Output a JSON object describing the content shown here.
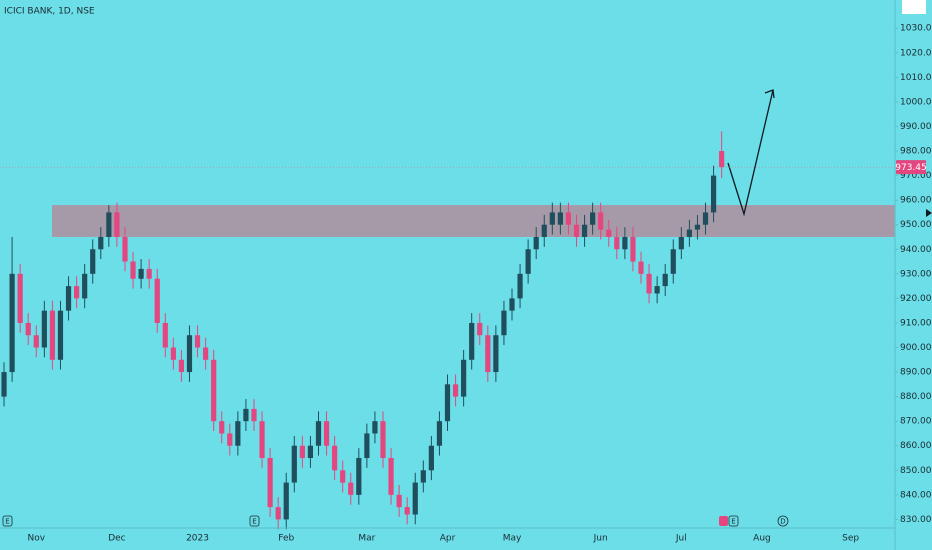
{
  "chart_data": {
    "type": "candlestick",
    "title": "ICICI BANK, 1D, NSE",
    "categories": [
      null,
      null,
      null,
      null,
      "Nov",
      null,
      null,
      null,
      null,
      null,
      null,
      null,
      null,
      null,
      "Dec",
      null,
      null,
      null,
      null,
      null,
      null,
      null,
      null,
      null,
      "2023",
      null,
      null,
      null,
      null,
      null,
      null,
      null,
      null,
      null,
      null,
      "Feb",
      null,
      null,
      null,
      null,
      null,
      null,
      null,
      null,
      null,
      "Mar",
      null,
      null,
      null,
      null,
      null,
      null,
      null,
      null,
      null,
      "Apr",
      null,
      null,
      null,
      null,
      null,
      null,
      null,
      "May",
      null,
      null,
      null,
      null,
      null,
      null,
      null,
      null,
      null,
      null,
      "Jun",
      null,
      null,
      null,
      null,
      null,
      null,
      null,
      null,
      null,
      "Jul",
      null,
      null,
      null,
      null,
      null,
      null,
      null,
      null,
      null,
      "Aug",
      null,
      null,
      null,
      null,
      null,
      null,
      null,
      null,
      null,
      null,
      "Sep",
      null,
      null,
      null,
      null,
      null
    ],
    "open": [
      880,
      890,
      930,
      910,
      905,
      900,
      915,
      895,
      915,
      925,
      920,
      930,
      940,
      945,
      955,
      945,
      935,
      928,
      932,
      928,
      910,
      900,
      895,
      890,
      905,
      900,
      895,
      870,
      865,
      860,
      870,
      875,
      870,
      855,
      835,
      830,
      845,
      860,
      855,
      860,
      870,
      860,
      850,
      845,
      840,
      855,
      865,
      870,
      855,
      840,
      835,
      832,
      845,
      850,
      860,
      870,
      885,
      880,
      895,
      910,
      905,
      890,
      905,
      915,
      920,
      930,
      940,
      945,
      950,
      950,
      955,
      950,
      945,
      950,
      955,
      948,
      945,
      940,
      945,
      935,
      930,
      922,
      925,
      930,
      940,
      945,
      948,
      950,
      955,
      980,
      null,
      null,
      null,
      null,
      null,
      null,
      null,
      null,
      null,
      null,
      null,
      null,
      null,
      null,
      null,
      null,
      null,
      null,
      null,
      null,
      null
    ],
    "high": [
      894,
      945,
      934,
      914,
      909,
      919,
      919,
      919,
      929,
      929,
      934,
      944,
      949,
      958,
      959,
      949,
      939,
      936,
      936,
      932,
      914,
      904,
      899,
      909,
      909,
      904,
      899,
      874,
      869,
      874,
      879,
      879,
      874,
      859,
      839,
      849,
      864,
      864,
      864,
      874,
      874,
      864,
      854,
      849,
      859,
      869,
      874,
      874,
      859,
      844,
      839,
      849,
      854,
      864,
      874,
      889,
      889,
      899,
      914,
      914,
      909,
      909,
      919,
      924,
      934,
      944,
      949,
      954,
      959,
      959,
      959,
      954,
      954,
      959,
      959,
      952,
      949,
      949,
      949,
      939,
      934,
      929,
      934,
      944,
      949,
      952,
      954,
      959,
      974,
      988,
      null,
      null,
      null,
      null,
      null,
      null,
      null,
      null,
      null,
      null,
      null,
      null,
      null,
      null,
      null,
      null,
      null,
      null,
      null,
      null,
      null
    ],
    "low": [
      876,
      886,
      906,
      901,
      896,
      896,
      891,
      891,
      911,
      916,
      916,
      926,
      936,
      941,
      941,
      931,
      924,
      924,
      924,
      906,
      896,
      891,
      886,
      886,
      896,
      891,
      866,
      861,
      856,
      856,
      866,
      866,
      851,
      831,
      826,
      826,
      841,
      851,
      851,
      856,
      856,
      846,
      841,
      836,
      836,
      851,
      861,
      851,
      836,
      831,
      828,
      828,
      841,
      846,
      856,
      866,
      876,
      876,
      891,
      901,
      886,
      886,
      901,
      911,
      916,
      926,
      936,
      941,
      946,
      946,
      946,
      941,
      941,
      946,
      944,
      941,
      936,
      936,
      931,
      926,
      918,
      918,
      921,
      926,
      936,
      941,
      944,
      946,
      951,
      969,
      null,
      null,
      null,
      null,
      null,
      null,
      null,
      null,
      null,
      null,
      null,
      null,
      null,
      null,
      null,
      null,
      null,
      null,
      null,
      null,
      null
    ],
    "close": [
      890,
      930,
      910,
      905,
      900,
      915,
      895,
      915,
      925,
      920,
      930,
      940,
      945,
      955,
      945,
      935,
      928,
      932,
      928,
      910,
      900,
      895,
      890,
      905,
      900,
      895,
      870,
      865,
      860,
      870,
      875,
      870,
      855,
      835,
      830,
      845,
      860,
      855,
      860,
      870,
      860,
      850,
      845,
      840,
      855,
      865,
      870,
      855,
      840,
      835,
      832,
      845,
      850,
      860,
      870,
      885,
      880,
      895,
      910,
      905,
      890,
      905,
      915,
      920,
      930,
      940,
      945,
      950,
      955,
      955,
      950,
      945,
      950,
      955,
      948,
      945,
      940,
      945,
      935,
      930,
      922,
      925,
      930,
      940,
      945,
      948,
      950,
      955,
      970,
      973.45,
      null,
      null,
      null,
      null,
      null,
      null,
      null,
      null,
      null,
      null,
      null,
      null,
      null,
      null,
      null,
      null,
      null,
      null,
      null,
      null,
      null
    ],
    "up_color": "#1f4f5c",
    "down_color": "#e4477f",
    "zone": [
      945,
      958
    ],
    "zone_color": "#a79aa8",
    "ylim": [
      826.5,
      1041.5
    ],
    "yticks": [
      {
        "value": 830,
        "label": "830.00"
      },
      {
        "value": 840,
        "label": "840.00"
      },
      {
        "value": 850,
        "label": "850.00"
      },
      {
        "value": 860,
        "label": "860.00"
      },
      {
        "value": 870,
        "label": "870.00"
      },
      {
        "value": 880,
        "label": "880.00"
      },
      {
        "value": 890,
        "label": "890.00"
      },
      {
        "value": 900,
        "label": "900.00"
      },
      {
        "value": 910,
        "label": "910.00"
      },
      {
        "value": 920,
        "label": "920.00"
      },
      {
        "value": 930,
        "label": "930.00"
      },
      {
        "value": 940,
        "label": "940.00"
      },
      {
        "value": 950,
        "label": "950.00"
      },
      {
        "value": 960,
        "label": "960.00"
      },
      {
        "value": 970,
        "label": "970.00"
      },
      {
        "value": 980,
        "label": "980.00"
      },
      {
        "value": 990,
        "label": "990.00"
      },
      {
        "value": 1000,
        "label": "1000.00"
      },
      {
        "value": 1010,
        "label": "1010.00"
      },
      {
        "value": 1020,
        "label": "1020.00"
      },
      {
        "value": 1030,
        "label": "1030.00"
      }
    ],
    "markers": [
      "E",
      "E",
      "E",
      "D"
    ]
  }
}
